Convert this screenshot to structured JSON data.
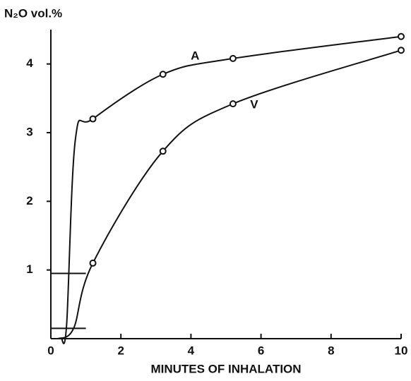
{
  "chart_data": {
    "type": "line",
    "y_label": "N₂O vol.%",
    "x_label": "MINUTES OF INHALATION",
    "xlim": [
      0,
      10
    ],
    "ylim": [
      0,
      4.5
    ],
    "xticks": [
      0,
      2,
      4,
      6,
      8,
      10
    ],
    "yticks": [
      1,
      2,
      3,
      4
    ],
    "color": "#111111",
    "series": [
      {
        "name": "A",
        "x": [
          0.3,
          0.45,
          0.7,
          1.2,
          3.2,
          5.2,
          10
        ],
        "values": [
          0,
          0.2,
          2.9,
          3.2,
          3.85,
          4.08,
          4.4
        ],
        "marker_indices": [
          3,
          4,
          5,
          6
        ]
      },
      {
        "name": "V",
        "x": [
          0.2,
          0.65,
          1.2,
          3.2,
          5.2,
          10
        ],
        "values": [
          0,
          0.15,
          1.1,
          2.73,
          3.42,
          4.2
        ],
        "marker_indices": [
          2,
          3,
          4,
          5
        ]
      }
    ],
    "reference_lines": [
      {
        "y": 0.95,
        "x": [
          0,
          1
        ]
      },
      {
        "y": 0.15,
        "x": [
          0,
          1
        ]
      }
    ]
  }
}
